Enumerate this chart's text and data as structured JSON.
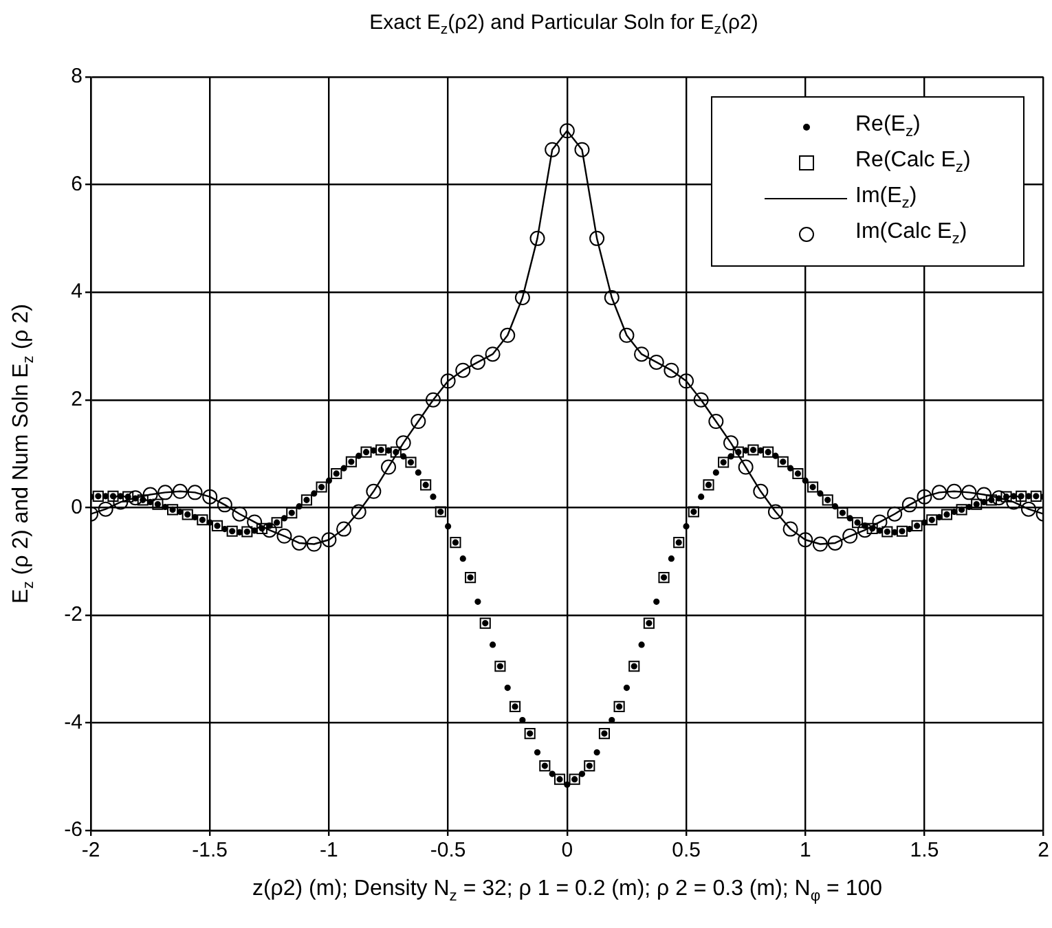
{
  "chart_data": {
    "type": "scatter",
    "title": "Exact E$_{z}$(ρ2) and Particular Soln for E$_{z}$(ρ2)",
    "xlabel": "z(ρ2) (m); Density N$_{z}$ = 32; ρ 1 = 0.2 (m); ρ 2 = 0.3 (m); N$_{φ}$ = 100",
    "ylabel": "E$_{z}$ (ρ 2) and Num Soln E$_{z}$ (ρ 2)",
    "xlim": [
      -2,
      2
    ],
    "ylim": [
      -6,
      8
    ],
    "xticks": [
      -2,
      -1.5,
      -1,
      -0.5,
      0,
      0.5,
      1,
      1.5,
      2
    ],
    "yticks": [
      -6,
      -4,
      -2,
      0,
      2,
      4,
      6,
      8
    ],
    "grid": true,
    "legend": "top right",
    "series": [
      {
        "name": "Re(E$_{z}$)",
        "type": "scatter",
        "marker": "circle",
        "color": "#000000",
        "x": [
          -2,
          -1.96875,
          -1.9375,
          -1.90625,
          -1.875,
          -1.84375,
          -1.8125,
          -1.78125,
          -1.75,
          -1.71875,
          -1.6875,
          -1.65625,
          -1.625,
          -1.59375,
          -1.5625,
          -1.53125,
          -1.5,
          -1.46875,
          -1.4375,
          -1.40625,
          -1.375,
          -1.34375,
          -1.3125,
          -1.28125,
          -1.25,
          -1.21875,
          -1.1875,
          -1.15625,
          -1.125,
          -1.09375,
          -1.0625,
          -1.03125,
          -1,
          -0.96875,
          -0.9375,
          -0.90625,
          -0.875,
          -0.84375,
          -0.8125,
          -0.78125,
          -0.75,
          -0.71875,
          -0.6875,
          -0.65625,
          -0.625,
          -0.59375,
          -0.5625,
          -0.53125,
          -0.5,
          -0.46875,
          -0.4375,
          -0.40625,
          -0.375,
          -0.34375,
          -0.3125,
          -0.28125,
          -0.25,
          -0.21875,
          -0.1875,
          -0.15625,
          -0.125,
          -0.09375,
          -0.0625,
          -0.03125,
          0,
          0.03125,
          0.0625,
          0.09375,
          0.125,
          0.15625,
          0.1875,
          0.21875,
          0.25,
          0.28125,
          0.3125,
          0.34375,
          0.375,
          0.40625,
          0.4375,
          0.46875,
          0.5,
          0.53125,
          0.5625,
          0.59375,
          0.625,
          0.65625,
          0.6875,
          0.71875,
          0.75,
          0.78125,
          0.8125,
          0.84375,
          0.875,
          0.90625,
          0.9375,
          0.96875,
          1,
          1.03125,
          1.0625,
          1.09375,
          1.125,
          1.15625,
          1.1875,
          1.21875,
          1.25,
          1.28125,
          1.3125,
          1.34375,
          1.375,
          1.40625,
          1.4375,
          1.46875,
          1.5,
          1.53125,
          1.5625,
          1.59375,
          1.625,
          1.65625,
          1.6875,
          1.71875,
          1.75,
          1.78125,
          1.8125,
          1.84375,
          1.875,
          1.90625,
          1.9375,
          1.96875,
          2
        ],
        "values": [
          0.2,
          0.21,
          0.21,
          0.21,
          0.21,
          0.2,
          0.17,
          0.14,
          0.1,
          0.06,
          0.01,
          -0.04,
          -0.08,
          -0.13,
          -0.18,
          -0.23,
          -0.28,
          -0.34,
          -0.4,
          -0.44,
          -0.46,
          -0.45,
          -0.43,
          -0.39,
          -0.34,
          -0.28,
          -0.2,
          -0.1,
          0.02,
          0.14,
          0.26,
          0.38,
          0.5,
          0.63,
          0.73,
          0.85,
          0.96,
          1.03,
          1.06,
          1.07,
          1.06,
          1.03,
          0.95,
          0.84,
          0.65,
          0.42,
          0.2,
          -0.08,
          -0.35,
          -0.65,
          -0.95,
          -1.3,
          -1.75,
          -2.15,
          -2.55,
          -2.95,
          -3.35,
          -3.7,
          -3.95,
          -4.2,
          -4.55,
          -4.8,
          -4.95,
          -5.05,
          -5.15,
          -5.05,
          -4.95,
          -4.8,
          -4.55,
          -4.2,
          -3.95,
          -3.7,
          -3.35,
          -2.95,
          -2.55,
          -2.15,
          -1.75,
          -1.3,
          -0.95,
          -0.65,
          -0.35,
          -0.08,
          0.2,
          0.42,
          0.65,
          0.84,
          0.95,
          1.03,
          1.06,
          1.07,
          1.06,
          1.03,
          0.96,
          0.85,
          0.73,
          0.63,
          0.5,
          0.38,
          0.26,
          0.14,
          0.02,
          -0.1,
          -0.2,
          -0.28,
          -0.34,
          -0.39,
          -0.43,
          -0.45,
          -0.46,
          -0.44,
          -0.4,
          -0.34,
          -0.28,
          -0.23,
          -0.18,
          -0.13,
          -0.08,
          -0.04,
          0.01,
          0.06,
          0.1,
          0.14,
          0.17,
          0.2,
          0.21,
          0.21,
          0.21,
          0.21,
          0.2
        ]
      },
      {
        "name": "Re(Calc E$_{z}$)",
        "type": "scatter",
        "marker": "square",
        "color": "#000000",
        "x": [
          -1.96875,
          -1.90625,
          -1.84375,
          -1.78125,
          -1.71875,
          -1.65625,
          -1.59375,
          -1.53125,
          -1.46875,
          -1.40625,
          -1.34375,
          -1.28125,
          -1.21875,
          -1.15625,
          -1.09375,
          -1.03125,
          -0.96875,
          -0.90625,
          -0.84375,
          -0.78125,
          -0.71875,
          -0.65625,
          -0.59375,
          -0.53125,
          -0.46875,
          -0.40625,
          -0.34375,
          -0.28125,
          -0.21875,
          -0.15625,
          -0.09375,
          -0.03125,
          0.03125,
          0.09375,
          0.15625,
          0.21875,
          0.28125,
          0.34375,
          0.40625,
          0.46875,
          0.53125,
          0.59375,
          0.65625,
          0.71875,
          0.78125,
          0.84375,
          0.90625,
          0.96875,
          1.03125,
          1.09375,
          1.15625,
          1.21875,
          1.28125,
          1.34375,
          1.40625,
          1.46875,
          1.53125,
          1.59375,
          1.65625,
          1.71875,
          1.78125,
          1.84375,
          1.90625,
          1.96875
        ],
        "values": [
          0.21,
          0.21,
          0.2,
          0.14,
          0.06,
          -0.04,
          -0.13,
          -0.23,
          -0.34,
          -0.44,
          -0.45,
          -0.39,
          -0.28,
          -0.1,
          0.14,
          0.38,
          0.63,
          0.85,
          1.03,
          1.07,
          1.03,
          0.84,
          0.42,
          -0.08,
          -0.65,
          -1.3,
          -2.15,
          -2.95,
          -3.7,
          -4.2,
          -4.8,
          -5.05,
          -5.05,
          -4.8,
          -4.2,
          -3.7,
          -2.95,
          -2.15,
          -1.3,
          -0.65,
          -0.08,
          0.42,
          0.84,
          1.03,
          1.07,
          1.03,
          0.85,
          0.63,
          0.38,
          0.14,
          -0.1,
          -0.28,
          -0.39,
          -0.45,
          -0.44,
          -0.34,
          -0.23,
          -0.13,
          -0.04,
          0.06,
          0.14,
          0.2,
          0.21,
          0.21
        ]
      },
      {
        "name": "Im(E$_{z}$)",
        "type": "line",
        "marker": "none",
        "line_style": "solid",
        "color": "#000000",
        "x": [
          -2,
          -1.9375,
          -1.875,
          -1.8125,
          -1.75,
          -1.6875,
          -1.625,
          -1.5625,
          -1.5,
          -1.4375,
          -1.375,
          -1.3125,
          -1.25,
          -1.1875,
          -1.125,
          -1.0625,
          -1,
          -0.9375,
          -0.875,
          -0.8125,
          -0.75,
          -0.6875,
          -0.625,
          -0.5625,
          -0.5,
          -0.4375,
          -0.375,
          -0.3125,
          -0.25,
          -0.1875,
          -0.125,
          -0.0625,
          0,
          0.0625,
          0.125,
          0.1875,
          0.25,
          0.3125,
          0.375,
          0.4375,
          0.5,
          0.5625,
          0.625,
          0.6875,
          0.75,
          0.8125,
          0.875,
          0.9375,
          1,
          1.0625,
          1.125,
          1.1875,
          1.25,
          1.3125,
          1.375,
          1.4375,
          1.5,
          1.5625,
          1.625,
          1.6875,
          1.75,
          1.8125,
          1.875,
          1.9375,
          2
        ],
        "values": [
          -0.12,
          -0.03,
          0.1,
          0.18,
          0.24,
          0.28,
          0.3,
          0.28,
          0.2,
          0.05,
          -0.12,
          -0.27,
          -0.42,
          -0.53,
          -0.66,
          -0.68,
          -0.6,
          -0.4,
          -0.08,
          0.3,
          0.75,
          1.2,
          1.6,
          2.0,
          2.35,
          2.55,
          2.7,
          2.85,
          3.2,
          3.9,
          5.0,
          6.65,
          7.0,
          6.65,
          5.0,
          3.9,
          3.2,
          2.85,
          2.7,
          2.55,
          2.35,
          2.0,
          1.6,
          1.2,
          0.75,
          0.3,
          -0.08,
          -0.4,
          -0.6,
          -0.68,
          -0.66,
          -0.53,
          -0.42,
          -0.27,
          -0.12,
          0.05,
          0.2,
          0.28,
          0.3,
          0.28,
          0.24,
          0.18,
          0.1,
          -0.03,
          -0.12
        ]
      },
      {
        "name": "Im(Calc E$_{z}$)",
        "type": "scatter",
        "marker": "circle",
        "color": "#000000",
        "x": [
          -2,
          -1.9375,
          -1.875,
          -1.8125,
          -1.75,
          -1.6875,
          -1.625,
          -1.5625,
          -1.5,
          -1.4375,
          -1.375,
          -1.3125,
          -1.25,
          -1.1875,
          -1.125,
          -1.0625,
          -1,
          -0.9375,
          -0.875,
          -0.8125,
          -0.75,
          -0.6875,
          -0.625,
          -0.5625,
          -0.5,
          -0.4375,
          -0.375,
          -0.3125,
          -0.25,
          -0.1875,
          -0.125,
          -0.0625,
          0,
          0.0625,
          0.125,
          0.1875,
          0.25,
          0.3125,
          0.375,
          0.4375,
          0.5,
          0.5625,
          0.625,
          0.6875,
          0.75,
          0.8125,
          0.875,
          0.9375,
          1,
          1.0625,
          1.125,
          1.1875,
          1.25,
          1.3125,
          1.375,
          1.4375,
          1.5,
          1.5625,
          1.625,
          1.6875,
          1.75,
          1.8125,
          1.875,
          1.9375,
          2
        ],
        "values": [
          -0.12,
          -0.03,
          0.1,
          0.18,
          0.24,
          0.28,
          0.3,
          0.28,
          0.2,
          0.05,
          -0.12,
          -0.27,
          -0.42,
          -0.53,
          -0.66,
          -0.68,
          -0.6,
          -0.4,
          -0.08,
          0.3,
          0.75,
          1.2,
          1.6,
          2.0,
          2.35,
          2.55,
          2.7,
          2.85,
          3.2,
          3.9,
          5.0,
          6.65,
          7.0,
          6.65,
          5.0,
          3.9,
          3.2,
          2.85,
          2.7,
          2.55,
          2.35,
          2.0,
          1.6,
          1.2,
          0.75,
          0.3,
          -0.08,
          -0.4,
          -0.6,
          -0.68,
          -0.66,
          -0.53,
          -0.42,
          -0.27,
          -0.12,
          0.05,
          0.2,
          0.28,
          0.3,
          0.28,
          0.24,
          0.18,
          0.1,
          -0.03,
          -0.12
        ]
      }
    ]
  }
}
